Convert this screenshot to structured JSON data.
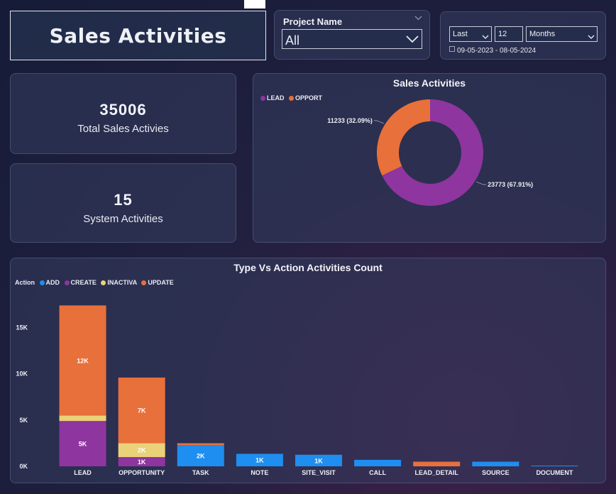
{
  "header": {
    "title": "Sales Activities"
  },
  "filters": {
    "project": {
      "label": "Project Name",
      "value": "All"
    },
    "date": {
      "relative": "Last",
      "count": "12",
      "unit": "Months",
      "range": "09-05-2023 - 08-05-2024"
    }
  },
  "kpis": {
    "total": {
      "value": "35006",
      "label": "Total Sales Activies"
    },
    "system": {
      "value": "15",
      "label": "System Activities"
    }
  },
  "colors": {
    "lead": "#8e35a0",
    "opportunity": "#e8703a",
    "add": "#1e8ef0",
    "create": "#8e35a0",
    "inactiva": "#ead278",
    "update": "#e8703a"
  },
  "chart_data": [
    {
      "type": "pie",
      "title": "Sales Activities",
      "legend": [
        "LEAD",
        "OPPORT"
      ],
      "legend_position": "top-left",
      "donut": true,
      "slices": [
        {
          "label": "LEAD",
          "value": 23773,
          "percent": 67.91,
          "data_label": "23773 (67.91%)"
        },
        {
          "label": "OPPORT",
          "value": 11233,
          "percent": 32.09,
          "data_label": "11233 (32.09%)"
        }
      ]
    },
    {
      "type": "bar",
      "stacked": true,
      "title": "Type Vs Action Activities Count",
      "legend_title": "Action",
      "legend_position": "top-left",
      "categories": [
        "LEAD",
        "OPPORTUNITY",
        "TASK",
        "NOTE",
        "SITE_VISIT",
        "CALL",
        "LEAD_DETAIL",
        "SOURCE",
        "DOCUMENT"
      ],
      "series": [
        {
          "name": "ADD",
          "values": [
            0,
            0,
            2300,
            1350,
            1250,
            700,
            0,
            500,
            80
          ],
          "labels": [
            "",
            "",
            "2K",
            "1K",
            "1K",
            "",
            "",
            "",
            ""
          ]
        },
        {
          "name": "CREATE",
          "values": [
            4900,
            1000,
            0,
            0,
            0,
            0,
            0,
            0,
            0
          ],
          "labels": [
            "5K",
            "1K",
            "",
            "",
            "",
            "",
            "",
            "",
            ""
          ]
        },
        {
          "name": "INACTIVA",
          "values": [
            600,
            1500,
            0,
            0,
            0,
            0,
            0,
            0,
            0
          ],
          "labels": [
            "",
            "2K",
            "",
            "",
            "",
            "",
            "",
            "",
            ""
          ]
        },
        {
          "name": "UPDATE",
          "values": [
            11900,
            7100,
            200,
            0,
            0,
            0,
            500,
            0,
            0
          ],
          "labels": [
            "12K",
            "7K",
            "",
            "",
            "",
            "",
            "",
            "",
            ""
          ]
        }
      ],
      "yticks": [
        "0K",
        "5K",
        "10K",
        "15K"
      ],
      "ytick_values": [
        0,
        5000,
        10000,
        15000
      ],
      "ylim": [
        0,
        18500
      ],
      "grid": false
    }
  ]
}
